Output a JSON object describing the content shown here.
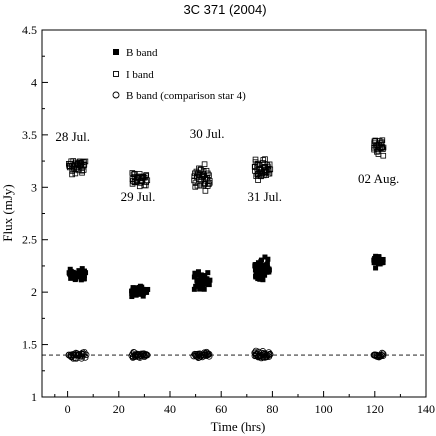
{
  "chart_data": {
    "type": "scatter",
    "title": "3C 371 (2004)",
    "xlabel": "Time (hrs)",
    "ylabel": "Flux (mJy)",
    "xlim": [
      -10,
      140
    ],
    "ylim": [
      1,
      4.5
    ],
    "xticks": [
      "0",
      "20",
      "40",
      "60",
      "80",
      "100",
      "120",
      "140"
    ],
    "yticks": [
      "1",
      "1.5",
      "2",
      "2.5",
      "3",
      "3.5",
      "4",
      "4.5"
    ],
    "grid": false,
    "legend_position": "top-left",
    "reference_line": {
      "y": 1.4,
      "style": "dashed"
    },
    "annotations": [
      {
        "text": "28 Jul.",
        "x": 2.0,
        "y": 3.44
      },
      {
        "text": "29 Jul.",
        "x": 27.5,
        "y": 2.87
      },
      {
        "text": "30 Jul.",
        "x": 54.5,
        "y": 3.47
      },
      {
        "text": "31 Jul.",
        "x": 77.0,
        "y": 2.87
      },
      {
        "text": "02 Aug.",
        "x": 121.5,
        "y": 3.04
      }
    ],
    "series": [
      {
        "name": "B band",
        "marker": "filled-square",
        "clusters": [
          {
            "x": [
              0.5,
              7
            ],
            "y_center": 2.16,
            "spread": 0.05,
            "n": 38
          },
          {
            "x": [
              25,
              31
            ],
            "y_center": 2.01,
            "spread": 0.04,
            "n": 38
          },
          {
            "x": [
              49.5,
              55.5
            ],
            "y_center": 2.11,
            "spread": 0.07,
            "n": 40
          },
          {
            "x": [
              73,
              79
            ],
            "y_center": 2.21,
            "spread": 0.09,
            "n": 45
          },
          {
            "x": [
              119.5,
              123.5
            ],
            "y_center": 2.3,
            "spread": 0.05,
            "n": 26
          }
        ]
      },
      {
        "name": "I band",
        "marker": "open-square",
        "clusters": [
          {
            "x": [
              0.5,
              7
            ],
            "y_center": 3.21,
            "spread": 0.06,
            "n": 38
          },
          {
            "x": [
              25,
              31
            ],
            "y_center": 3.07,
            "spread": 0.06,
            "n": 34
          },
          {
            "x": [
              49.5,
              55.5
            ],
            "y_center": 3.1,
            "spread": 0.09,
            "n": 40
          },
          {
            "x": [
              73,
              79
            ],
            "y_center": 3.18,
            "spread": 0.08,
            "n": 45
          },
          {
            "x": [
              119.5,
              123.5
            ],
            "y_center": 3.38,
            "spread": 0.06,
            "n": 26
          }
        ]
      },
      {
        "name": "B band (comparison star 4)",
        "marker": "open-circle",
        "clusters": [
          {
            "x": [
              0.5,
              7
            ],
            "y_center": 1.4,
            "spread": 0.025,
            "n": 30
          },
          {
            "x": [
              25,
              31
            ],
            "y_center": 1.4,
            "spread": 0.02,
            "n": 30
          },
          {
            "x": [
              49.5,
              55.5
            ],
            "y_center": 1.4,
            "spread": 0.02,
            "n": 30
          },
          {
            "x": [
              73,
              79
            ],
            "y_center": 1.4,
            "spread": 0.03,
            "n": 34
          },
          {
            "x": [
              119.5,
              123.5
            ],
            "y_center": 1.4,
            "spread": 0.015,
            "n": 16
          }
        ]
      }
    ]
  }
}
